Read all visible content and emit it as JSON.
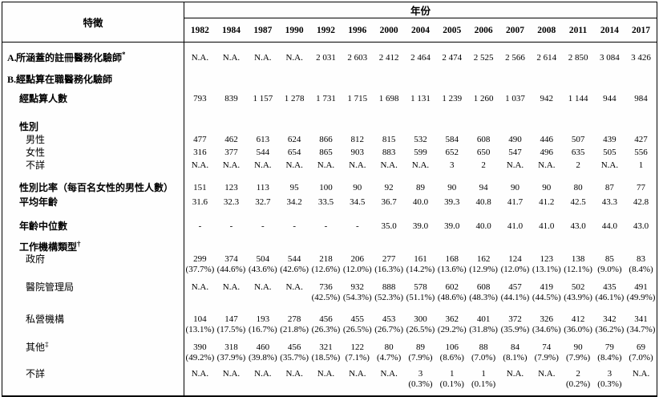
{
  "table": {
    "characteristic_label": "特徵",
    "year_label": "年份",
    "years": [
      "1982",
      "1984",
      "1987",
      "1990",
      "1992",
      "1996",
      "2000",
      "2004",
      "2005",
      "2006",
      "2007",
      "2008",
      "2011",
      "2014",
      "2017"
    ],
    "rows": [
      {
        "id": "covered",
        "prefix": "A.",
        "label": "所涵蓋的註冊醫務化驗師",
        "sup": "*",
        "bold": true,
        "indent": 0,
        "values": [
          "N.A.",
          "N.A.",
          "N.A.",
          "N.A.",
          "2 031",
          "2 603",
          "2 412",
          "2 464",
          "2 474",
          "2 525",
          "2 566",
          "2 614",
          "2 850",
          "3 084",
          "3 426"
        ]
      },
      {
        "id": "enumerated-heading",
        "prefix": "B.",
        "label": "經點算在職醫務化驗師",
        "bold": true,
        "indent": 0
      },
      {
        "id": "count",
        "label": "經點算人數",
        "bold": true,
        "indent": 1,
        "values": [
          "793",
          "839",
          "1 157",
          "1 278",
          "1 731",
          "1 715",
          "1 698",
          "1 131",
          "1 239",
          "1 260",
          "1 037",
          "942",
          "1 144",
          "944",
          "984"
        ]
      },
      {
        "id": "gender-heading",
        "label": "性別",
        "bold": true,
        "indent": 1
      },
      {
        "id": "male",
        "label": "男性",
        "indent": 2,
        "values": [
          "477",
          "462",
          "613",
          "624",
          "866",
          "812",
          "815",
          "532",
          "584",
          "608",
          "490",
          "446",
          "507",
          "439",
          "427"
        ]
      },
      {
        "id": "female",
        "label": "女性",
        "indent": 2,
        "values": [
          "316",
          "377",
          "544",
          "654",
          "865",
          "903",
          "883",
          "599",
          "652",
          "650",
          "547",
          "496",
          "635",
          "505",
          "556"
        ]
      },
      {
        "id": "gender-unknown",
        "label": "不詳",
        "indent": 2,
        "values": [
          "N.A.",
          "N.A.",
          "N.A.",
          "N.A.",
          "N.A.",
          "N.A.",
          "N.A.",
          "N.A.",
          "3",
          "2",
          "N.A.",
          "N.A.",
          "2",
          "N.A.",
          "1"
        ]
      },
      {
        "id": "sex-ratio",
        "label": "性別比率（每百名女性的男性人數）",
        "bold": true,
        "indent": 1,
        "values": [
          "151",
          "123",
          "113",
          "95",
          "100",
          "90",
          "92",
          "89",
          "90",
          "94",
          "90",
          "90",
          "80",
          "87",
          "77"
        ]
      },
      {
        "id": "mean-age",
        "label": "平均年齡",
        "bold": true,
        "indent": 1,
        "values": [
          "31.6",
          "32.3",
          "32.7",
          "34.2",
          "33.5",
          "34.5",
          "36.7",
          "40.0",
          "39.3",
          "40.8",
          "41.7",
          "41.2",
          "42.5",
          "43.3",
          "42.8"
        ]
      },
      {
        "id": "median-age",
        "label": "年齡中位數",
        "bold": true,
        "indent": 1,
        "values": [
          "-",
          "-",
          "-",
          "-",
          "-",
          "-",
          "35.0",
          "39.0",
          "39.0",
          "40.0",
          "41.0",
          "41.0",
          "43.0",
          "44.0",
          "43.0"
        ]
      },
      {
        "id": "worktype-heading",
        "label": "工作機構類型",
        "sup": "†",
        "bold": true,
        "indent": 1
      },
      {
        "id": "government",
        "label": "政府",
        "indent": 2,
        "values": [
          "299",
          "374",
          "504",
          "544",
          "218",
          "206",
          "277",
          "161",
          "168",
          "162",
          "124",
          "123",
          "138",
          "85",
          "83"
        ],
        "pcts": [
          "(37.7%)",
          "(44.6%)",
          "(43.6%)",
          "(42.6%)",
          "(12.6%)",
          "(12.0%)",
          "(16.3%)",
          "(14.2%)",
          "(13.6%)",
          "(12.9%)",
          "(12.0%)",
          "(13.1%)",
          "(12.1%)",
          "(9.0%)",
          "(8.4%)"
        ]
      },
      {
        "id": "hospital-authority",
        "label": "醫院管理局",
        "indent": 2,
        "values": [
          "N.A.",
          "N.A.",
          "N.A.",
          "N.A.",
          "736",
          "932",
          "888",
          "578",
          "602",
          "608",
          "457",
          "419",
          "502",
          "435",
          "491"
        ],
        "pcts": [
          "",
          "",
          "",
          "",
          "(42.5%)",
          "(54.3%)",
          "(52.3%)",
          "(51.1%)",
          "(48.6%)",
          "(48.3%)",
          "(44.1%)",
          "(44.5%)",
          "(43.9%)",
          "(46.1%)",
          "(49.9%)"
        ]
      },
      {
        "id": "private",
        "label": "私營機構",
        "indent": 2,
        "values": [
          "104",
          "147",
          "193",
          "278",
          "456",
          "455",
          "453",
          "300",
          "362",
          "401",
          "372",
          "326",
          "412",
          "342",
          "341"
        ],
        "pcts": [
          "(13.1%)",
          "(17.5%)",
          "(16.7%)",
          "(21.8%)",
          "(26.3%)",
          "(26.5%)",
          "(26.7%)",
          "(26.5%)",
          "(29.2%)",
          "(31.8%)",
          "(35.9%)",
          "(34.6%)",
          "(36.0%)",
          "(36.2%)",
          "(34.7%)"
        ]
      },
      {
        "id": "others",
        "label": "其他",
        "sup": "‡",
        "indent": 2,
        "values": [
          "390",
          "318",
          "460",
          "456",
          "321",
          "122",
          "80",
          "89",
          "106",
          "88",
          "84",
          "74",
          "90",
          "79",
          "69"
        ],
        "pcts": [
          "(49.2%)",
          "(37.9%)",
          "(39.8%)",
          "(35.7%)",
          "(18.5%)",
          "(7.1%)",
          "(4.7%)",
          "(7.9%)",
          "(8.6%)",
          "(7.0%)",
          "(8.1%)",
          "(7.9%)",
          "(7.9%)",
          "(8.4%)",
          "(7.0%)"
        ]
      },
      {
        "id": "worktype-unknown",
        "label": "不詳",
        "indent": 2,
        "values": [
          "N.A.",
          "N.A.",
          "N.A.",
          "N.A.",
          "N.A.",
          "N.A.",
          "N.A.",
          "3",
          "1",
          "1",
          "N.A.",
          "N.A.",
          "2",
          "3",
          "N.A."
        ],
        "pcts": [
          "",
          "",
          "",
          "",
          "",
          "",
          "",
          "(0.3%)",
          "(0.1%)",
          "(0.1%)",
          "",
          "",
          "(0.2%)",
          "(0.3%)",
          ""
        ]
      }
    ]
  }
}
